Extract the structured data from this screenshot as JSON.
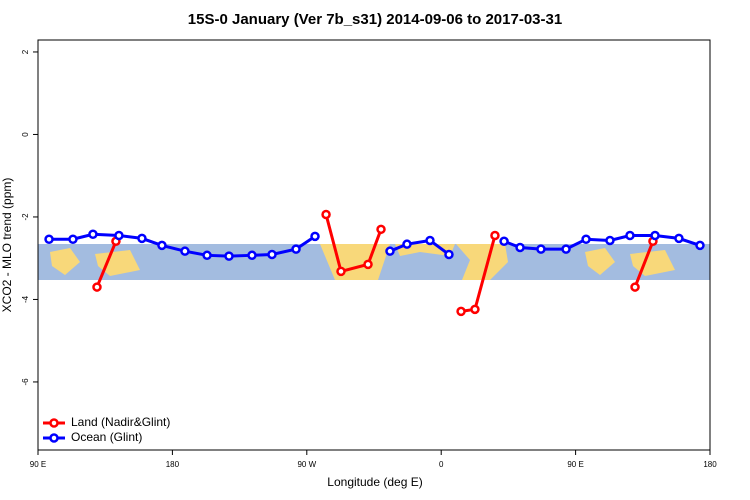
{
  "chart_data": {
    "type": "line",
    "title": "15S-0 January (Ver 7b_s31)   2014-09-06 to 2017-03-31",
    "x_label": "Longitude (deg E)",
    "y_label": "XCO2 - MLO trend (ppm)",
    "xlim": [
      90,
      540
    ],
    "ylim": [
      -7.65,
      2.29
    ],
    "xticks": [
      {
        "value": 90,
        "label": "90 E"
      },
      {
        "value": 180,
        "label": "180"
      },
      {
        "value": 270,
        "label": "90 W"
      },
      {
        "value": 360,
        "label": "0"
      },
      {
        "value": 450,
        "label": "90 E"
      },
      {
        "value": 540,
        "label": "180"
      }
    ],
    "yticks": [
      2,
      0,
      -2,
      -4,
      -6
    ],
    "legend": "bottom-left",
    "series": [
      {
        "name": "Land (Nadir&Glint)",
        "color": "#ff0000",
        "x": [
          129.5,
          142.2,
          null,
          282.9,
          292.9,
          311,
          319.7,
          null,
          373.3,
          382.6,
          396,
          null,
          489.8,
          501.8
        ],
        "values": [
          -3.7,
          -2.59,
          null,
          -1.94,
          -3.32,
          -3.15,
          -2.3,
          null,
          -4.29,
          -4.24,
          -2.45,
          null,
          -3.7,
          -2.59
        ]
      },
      {
        "name": "Ocean (Glint)",
        "color": "#0000ff",
        "x": [
          97.4,
          113.4,
          126.8,
          144.2,
          159.6,
          173,
          188.4,
          203.2,
          217.9,
          233.3,
          246.7,
          262.8,
          275.5,
          null,
          325.7,
          337.1,
          352.5,
          365.2,
          null,
          402.1,
          412.8,
          426.8,
          443.6,
          457,
          473,
          486.4,
          503.2,
          519.2,
          533.3
        ],
        "values": [
          -2.54,
          -2.54,
          -2.42,
          -2.45,
          -2.52,
          -2.69,
          -2.83,
          -2.93,
          -2.95,
          -2.93,
          -2.91,
          -2.78,
          -2.47,
          null,
          -2.83,
          -2.66,
          -2.57,
          -2.91,
          null,
          -2.59,
          -2.74,
          -2.78,
          -2.78,
          -2.54,
          -2.57,
          -2.45,
          -2.45,
          -2.52,
          -2.69
        ]
      }
    ]
  }
}
